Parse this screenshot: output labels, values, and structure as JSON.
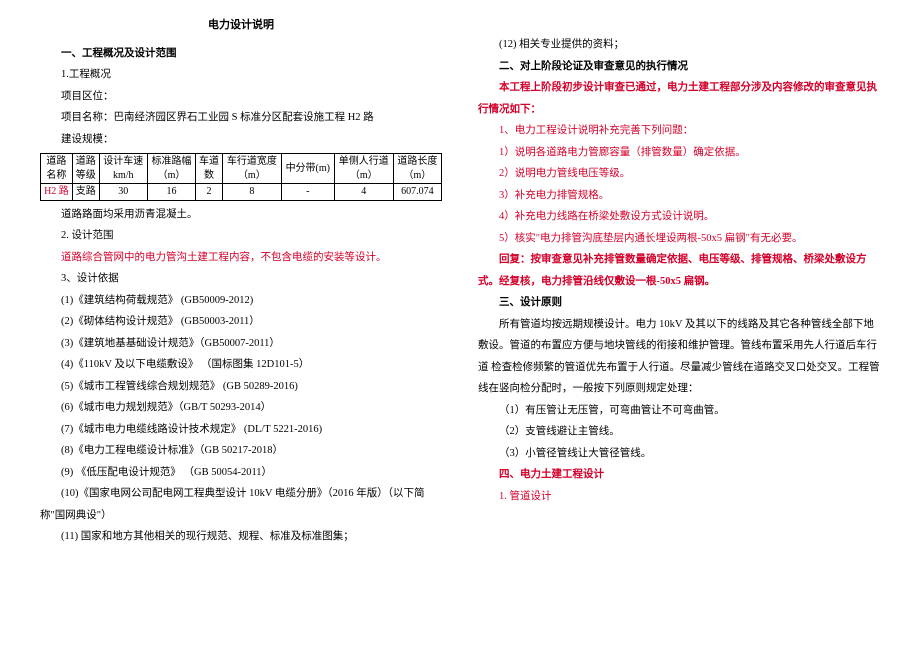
{
  "title": "电力设计说明",
  "left": {
    "h1": "一、工程概况及设计范围",
    "p1": "1.工程概况",
    "p2": "项目区位：",
    "p3": "项目名称：巴南经济园区界石工业园 S 标准分区配套设施工程 H2 路",
    "p4": "建设规模：",
    "table": {
      "headers": [
        "道路\n名称",
        "道路\n等级",
        "设计车速\nkm/h",
        "标准路幅\n（m）",
        "车道\n数",
        "车行道宽度\n（m）",
        "中分带(m)",
        "单侧人行道\n（m）",
        "道路长度\n（m）"
      ],
      "row": [
        "H2 路",
        "支路",
        "30",
        "16",
        "2",
        "8",
        "-",
        "4",
        "607.074"
      ],
      "row_red_idx": 0
    },
    "p5": "道路路面均采用沥青混凝土。",
    "p6": "2. 设计范围",
    "p7": "道路综合管网中的电力管沟土建工程内容，不包含电缆的安装等设计。",
    "p8": "3、设计依据",
    "p9": "(1)《建筑结构荷载规范》 (GB50009-2012)",
    "p10": "(2)《砌体结构设计规范》 (GB50003-2011）",
    "p11": "(3)《建筑地基基础设计规范》（GB50007-2011）",
    "p12": "(4)《110kV 及以下电缆敷设》 （国标图集 12D101-5）",
    "p13": "(5)《城市工程管线综合规划规范》 (GB 50289-2016)",
    "p14": "(6)《城市电力规划规范》（GB/T 50293-2014）",
    "p15": "(7)《城市电力电缆线路设计技术规定》 (DL/T 5221-2016)",
    "p16": "(8)《电力工程电缆设计标准》（GB 50217-2018）",
    "p17": "(9) 《低压配电设计规范》 （GB 50054-2011）",
    "p18": "(10)《国家电网公司配电网工程典型设计 10kV 电缆分册》（2016 年版）（以下简称\"国网典设\"）",
    "p19": "(11) 国家和地方其他相关的现行规范、规程、标准及标准图集；"
  },
  "right": {
    "p1": "(12) 相关专业提供的资料；",
    "h2": "二、对上阶段论证及审查意见的执行情况",
    "p2a": "本工程上阶段初步设计审查已通过，电力土建工程部分涉及内容修改的审查意见执行情况如下：",
    "p3": "1、电力工程设计说明补充完善下列问题：",
    "p4": "1）说明各道路电力管廊容量（排管数量）确定依据。",
    "p5": "2）说明电力管线电压等级。",
    "p6": "3）补充电力排管规格。",
    "p7": "4）补充电力线路在桥梁处敷设方式设计说明。",
    "p8": "5）核实\"电力排管沟底垫层内通长埋设两根-50x5 扁钢\"有无必要。",
    "p9a": "回复：按审查意见补充排管数量确定依据、电压等级、排管规格、桥梁处敷设方式。经复核，电力排管沿线仅敷设一根-50x5 扁钢。",
    "h3": "三、设计原则",
    "p10": "所有管道均按远期规模设计。电力 10kV 及其以下的线路及其它各种管线全部下地敷设。管道的布置应方便与地块管线的衔接和维护管理。管线布置采用先人行道后车行道 检查检修频繁的管道优先布置于人行道。尽量减少管线在道路交叉口处交叉。工程管线在竖向检分配时，一般按下列原则规定处理：",
    "p11": "（1）有压管让无压管，可弯曲管让不可弯曲管。",
    "p12": "（2）支管线避让主管线。",
    "p13": "（3）小管径管线让大管径管线。",
    "h4": "四、电力土建工程设计",
    "p14": "1. 管道设计"
  }
}
